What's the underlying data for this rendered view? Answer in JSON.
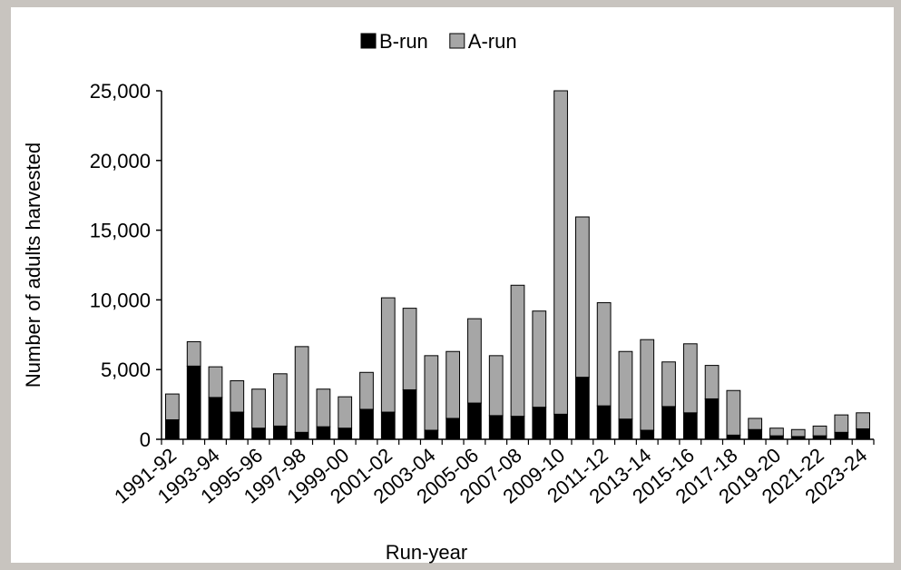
{
  "chart_data": {
    "type": "stacked-bar",
    "x_label": "Run-year",
    "y_label": "Number of adults harvested",
    "categories": [
      "1991-92",
      null,
      "1993-94",
      null,
      "1995-96",
      null,
      "1997-98",
      null,
      "1999-00",
      null,
      "2001-02",
      null,
      "2003-04",
      null,
      "2005-06",
      null,
      "2007-08",
      null,
      "2009-10",
      null,
      "2011-12",
      null,
      "2013-14",
      null,
      "2015-16",
      null,
      "2017-18",
      null,
      "2019-20",
      null,
      "2021-22",
      null,
      "2023-24"
    ],
    "series": [
      {
        "name": "B-run",
        "color": "#000000",
        "values": [
          1400,
          5250,
          3000,
          1950,
          800,
          950,
          500,
          900,
          800,
          2150,
          1950,
          3550,
          650,
          1500,
          2600,
          1700,
          1650,
          2300,
          1800,
          4450,
          2400,
          1450,
          650,
          2350,
          1900,
          2900,
          300,
          700,
          250,
          200,
          250,
          500,
          750
        ]
      },
      {
        "name": "A-run",
        "color": "#a6a6a6",
        "values": [
          1850,
          1750,
          2200,
          2250,
          2800,
          3750,
          6150,
          2700,
          2250,
          2650,
          8200,
          5850,
          5350,
          4800,
          6050,
          4300,
          9400,
          6900,
          23200,
          11500,
          7400,
          4850,
          6500,
          3200,
          4950,
          2400,
          3200,
          800,
          550,
          500,
          700,
          1250,
          1150
        ]
      }
    ],
    "ylim": [
      0,
      25000
    ],
    "yticks": [
      0,
      {
        "value": 5000,
        "label": "5,000"
      },
      {
        "value": 10000,
        "label": "10,000"
      },
      {
        "value": 15000,
        "label": "15,000"
      },
      {
        "value": 20000,
        "label": "20,000"
      },
      {
        "value": 25000,
        "label": "25,000"
      }
    ],
    "grid": false,
    "legend": "top"
  }
}
